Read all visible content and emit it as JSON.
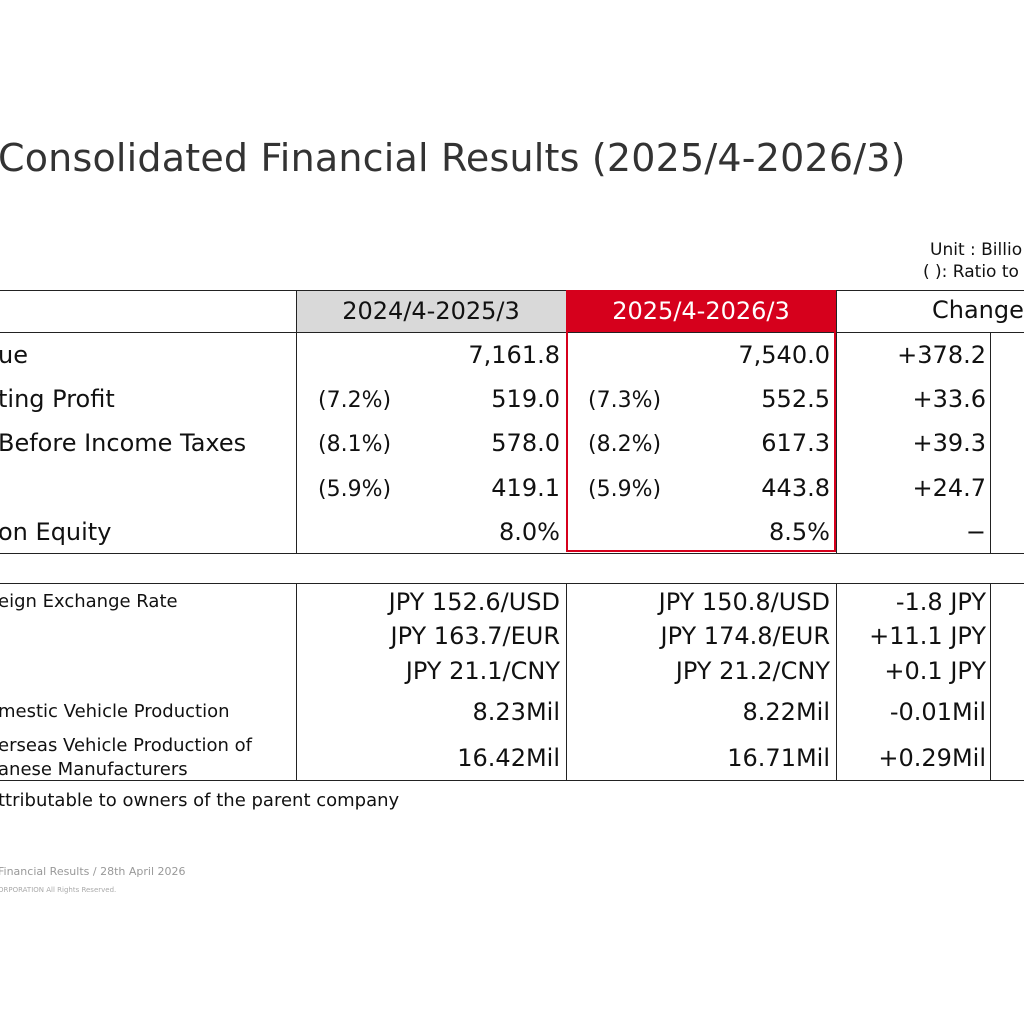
{
  "title": "Consolidated Financial Results (2025/4-2026/3)",
  "unit_note": "Unit : Billio",
  "ratio_note": "( ): Ratio to",
  "headers": {
    "prev": "2024/4-2025/3",
    "curr": "2025/4-2026/3",
    "change": "Change"
  },
  "colors": {
    "highlight": "#d6001c",
    "header_gray": "#d9d9d9"
  },
  "main_rows": [
    {
      "label": "ue",
      "prev_pct": "",
      "prev": "7,161.8",
      "curr_pct": "",
      "curr": "7,540.0",
      "change": "+378.2"
    },
    {
      "label": "ting Profit",
      "prev_pct": "(7.2%)",
      "prev": "519.0",
      "curr_pct": "(7.3%)",
      "curr": "552.5",
      "change": "+33.6"
    },
    {
      "label": "Before Income Taxes",
      "prev_pct": "(8.1%)",
      "prev": "578.0",
      "curr_pct": "(8.2%)",
      "curr": "617.3",
      "change": "+39.3"
    },
    {
      "label": "",
      "prev_pct": "(5.9%)",
      "prev": "419.1",
      "curr_pct": "(5.9%)",
      "curr": "443.8",
      "change": "+24.7"
    },
    {
      "label": " on Equity",
      "prev_pct": "",
      "prev": "8.0%",
      "curr_pct": "",
      "curr": "8.5%",
      "change": "−"
    }
  ],
  "fx": {
    "label": "eign Exchange Rate",
    "rows": [
      {
        "prev": "JPY 152.6/USD",
        "curr": "JPY 150.8/USD",
        "change": "-1.8 JPY"
      },
      {
        "prev": "JPY 163.7/EUR",
        "curr": "JPY 174.8/EUR",
        "change": "+11.1 JPY"
      },
      {
        "prev": "JPY 21.1/CNY",
        "curr": "JPY 21.2/CNY",
        "change": "+0.1 JPY"
      }
    ]
  },
  "domestic": {
    "label": "mestic Vehicle Production",
    "prev": "8.23Mil",
    "curr": "8.22Mil",
    "change": "-0.01Mil"
  },
  "overseas": {
    "label_line1": "erseas Vehicle Production of",
    "label_line2": "anese Manufacturers",
    "prev": "16.42Mil",
    "curr": "16.71Mil",
    "change": "+0.29Mil"
  },
  "footnote": "ttributable to owners of the parent company",
  "footer_line1": "Financial Results / 28th April 2026",
  "footer_line2": "ORPORATION All Rights Reserved."
}
